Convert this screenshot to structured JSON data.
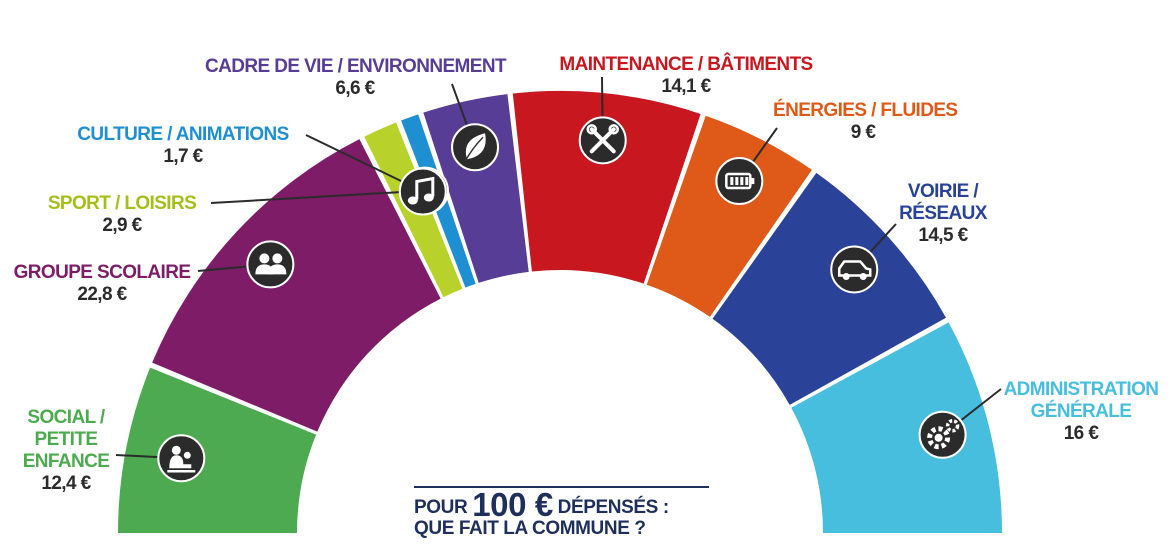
{
  "chart_data": {
    "type": "pie",
    "style": "semicircle-donut",
    "unit": "€",
    "slices": [
      {
        "name": "SOCIAL / PETITE ENFANCE",
        "lines": [
          "SOCIAL /",
          "PETITE",
          "ENFANCE"
        ],
        "value": 12.4,
        "value_label": "12,4 €",
        "color": "#4daa50",
        "icon": "parent-child-icon"
      },
      {
        "name": "GROUPE SCOLAIRE",
        "lines": [
          "GROUPE SCOLAIRE"
        ],
        "value": 22.8,
        "value_label": "22,8 €",
        "color": "#7e1c67",
        "icon": "people-icon"
      },
      {
        "name": "SPORT / LOISIRS",
        "lines": [
          "SPORT / LOISIRS"
        ],
        "value": 2.9,
        "value_label": "2,9 €",
        "color": "#b9d22b",
        "icon": "thumbs-up-icon"
      },
      {
        "name": "CULTURE / ANIMATIONS",
        "lines": [
          "CULTURE / ANIMATIONS"
        ],
        "value": 1.7,
        "value_label": "1,7 €",
        "color": "#1e8fd0",
        "icon": "music-note-icon"
      },
      {
        "name": "CADRE DE VIE / ENVIRONNEMENT",
        "lines": [
          "CADRE DE VIE / ENVIRONNEMENT"
        ],
        "value": 6.6,
        "value_label": "6,6 €",
        "color": "#583d96",
        "icon": "leaf-icon"
      },
      {
        "name": "MAINTENANCE / BÂTIMENTS",
        "lines": [
          "MAINTENANCE / BÂTIMENTS"
        ],
        "value": 14.1,
        "value_label": "14,1 €",
        "color": "#c8171f",
        "icon": "tools-icon"
      },
      {
        "name": "ÉNERGIES / FLUIDES",
        "lines": [
          "ÉNERGIES / FLUIDES"
        ],
        "value": 9,
        "value_label": "9 €",
        "color": "#df5a19",
        "icon": "battery-icon"
      },
      {
        "name": "VOIRIE / RÉSEAUX",
        "lines": [
          "VOIRIE /",
          "RÉSEAUX"
        ],
        "value": 14.5,
        "value_label": "14,5 €",
        "color": "#2a4298",
        "icon": "electric-car-icon"
      },
      {
        "name": "ADMINISTRATION GÉNÉRALE",
        "lines": [
          "ADMINISTRATION",
          "GÉNÉRALE"
        ],
        "value": 16,
        "value_label": "16 €",
        "color": "#48bede",
        "icon": "gears-icon"
      }
    ],
    "label_colors": {
      "SOCIAL / PETITE ENFANCE": "#4daa50",
      "GROUPE SCOLAIRE": "#7e1c67",
      "SPORT / LOISIRS": "#a4bf1a",
      "CULTURE / ANIMATIONS": "#1e8fd0",
      "CADRE DE VIE / ENVIRONNEMENT": "#583d96",
      "MAINTENANCE / BÂTIMENTS": "#c8171f",
      "ÉNERGIES / FLUIDES": "#df5a19",
      "VOIRIE / RÉSEAUX": "#2a4298",
      "ADMINISTRATION GÉNÉRALE": "#48bede"
    }
  },
  "caption": {
    "pre": "POUR",
    "amount": "100 €",
    "post": "DÉPENSÉS :",
    "line2": "QUE FAIT LA COMMUNE ?"
  }
}
